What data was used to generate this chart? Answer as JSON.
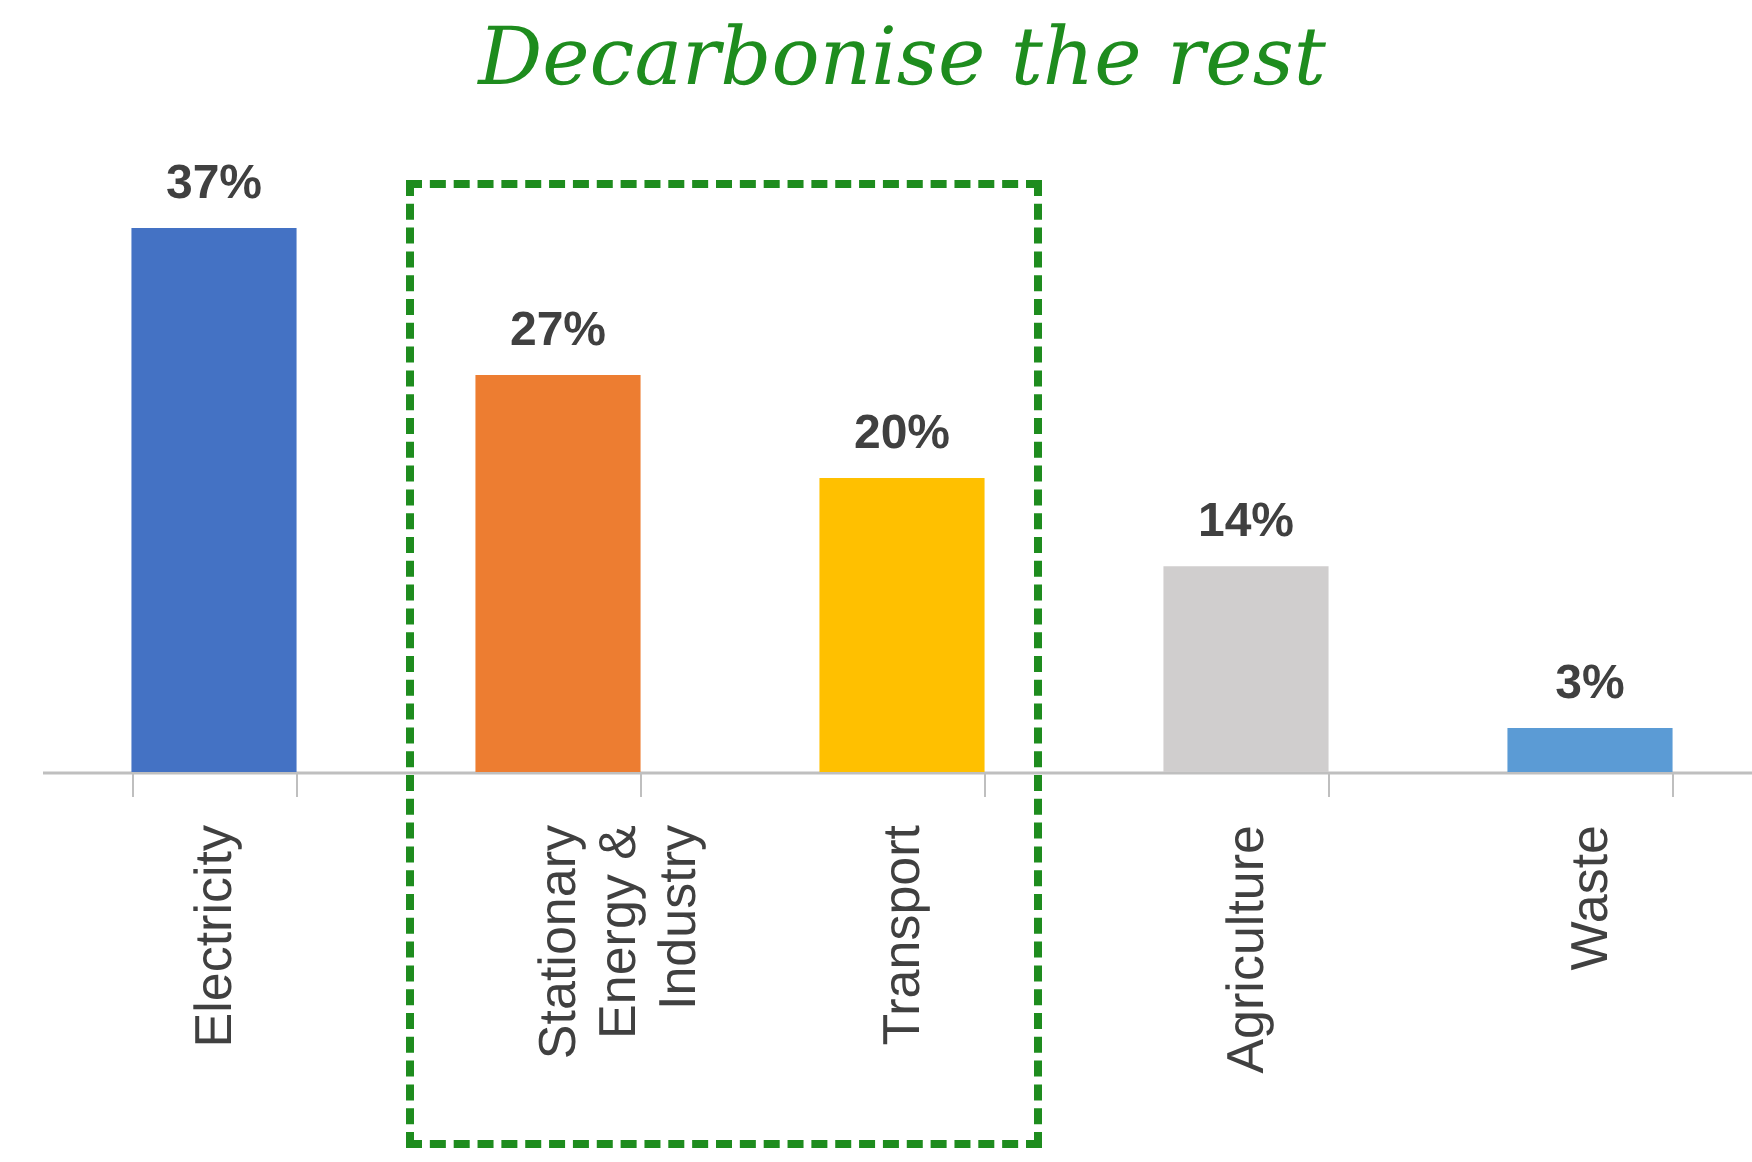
{
  "chart_data": {
    "type": "bar",
    "title": "Decarbonise the rest",
    "categories": [
      "Electricity",
      "Stationary Energy & Industry",
      "Transport",
      "Agriculture",
      "Waste"
    ],
    "values": [
      37,
      27,
      20,
      14,
      3
    ],
    "value_labels": [
      "37%",
      "27%",
      "20%",
      "14%",
      "3%"
    ],
    "colors": [
      "#4472c4",
      "#ed7d31",
      "#ffc000",
      "#d0cece",
      "#5b9bd5"
    ],
    "grid": false
  }
}
